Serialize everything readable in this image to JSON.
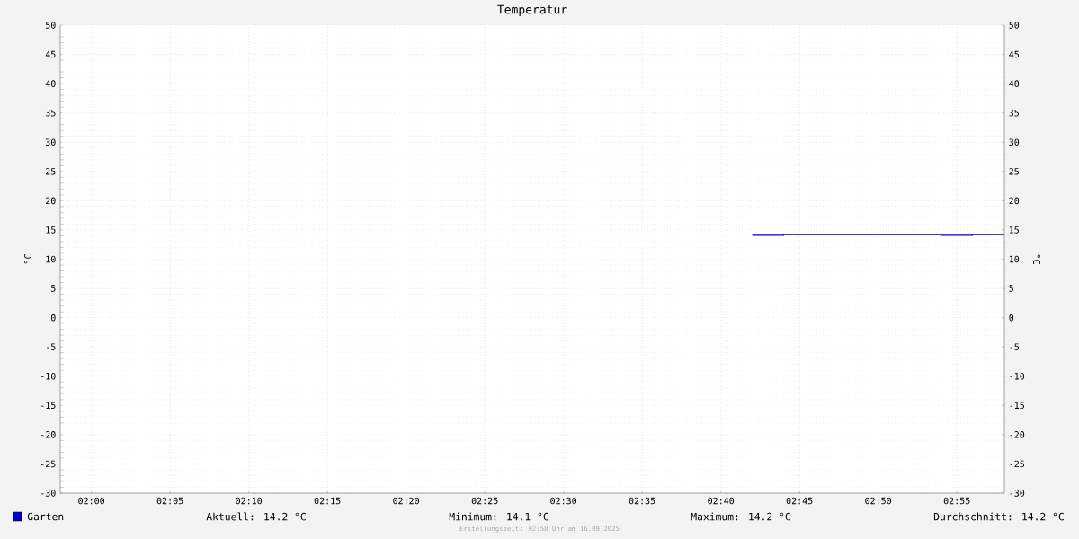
{
  "chart_data": {
    "type": "step",
    "title": "Temperatur",
    "ylabel": "°C",
    "y2label": "°C",
    "x": [
      2.7,
      2.7333,
      2.9,
      2.9333,
      2.967
    ],
    "series": [
      {
        "name": "Garten",
        "color": "#0000cc",
        "values": [
          14.1,
          14.2,
          14.1,
          14.2,
          14.2
        ]
      }
    ],
    "xlim": [
      1.967,
      2.967
    ],
    "xticks": [
      {
        "value": 2,
        "label": "02:00"
      },
      {
        "value": 2.0833,
        "label": "02:05"
      },
      {
        "value": 2.1667,
        "label": "02:10"
      },
      {
        "value": 2.25,
        "label": "02:15"
      },
      {
        "value": 2.3333,
        "label": "02:20"
      },
      {
        "value": 2.4167,
        "label": "02:25"
      },
      {
        "value": 2.5,
        "label": "02:30"
      },
      {
        "value": 2.5833,
        "label": "02:35"
      },
      {
        "value": 2.6667,
        "label": "02:40"
      },
      {
        "value": 2.75,
        "label": "02:45"
      },
      {
        "value": 2.8333,
        "label": "02:50"
      },
      {
        "value": 2.9167,
        "label": "02:55"
      }
    ],
    "ylim": [
      -30,
      50
    ],
    "yticks": [
      -30,
      -25,
      -20,
      -15,
      -10,
      -5,
      0,
      5,
      10,
      15,
      20,
      25,
      30,
      35,
      40,
      45,
      50
    ],
    "y2lim": [
      -30,
      50
    ],
    "y2ticks": [
      -30,
      -25,
      -20,
      -15,
      -10,
      -5,
      0,
      5,
      10,
      15,
      20,
      25,
      30,
      35,
      40,
      45,
      50
    ],
    "grid": true,
    "legend": "bottom left",
    "annotations": [
      "Aktuell: 14.2 °C",
      "Minimum: 14.1 °C",
      "Maximum: 14.2 °C",
      "Durchschnitt: 14.2 °C",
      "Erstellungszeit: 02:58 Uhr am 16.09.2025"
    ]
  }
}
